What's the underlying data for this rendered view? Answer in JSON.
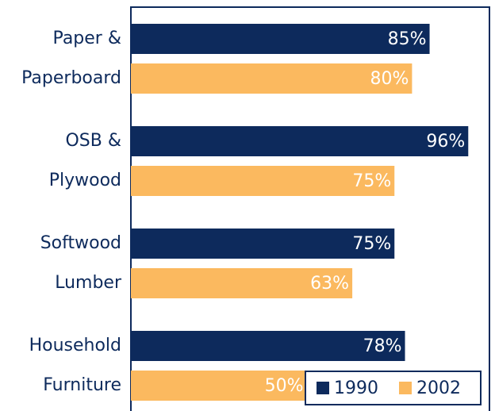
{
  "chart_data": {
    "type": "bar",
    "orientation": "horizontal",
    "categories": [
      "Paper & Paperboard",
      "OSB & Plywood",
      "Softwood Lumber",
      "Household Furniture"
    ],
    "series": [
      {
        "name": "1990",
        "color": "#0d2a5c",
        "values": [
          85,
          96,
          75,
          78
        ],
        "value_labels": [
          "85%",
          "96%",
          "75%",
          "78%"
        ]
      },
      {
        "name": "2002",
        "color": "#fbb95f",
        "values": [
          80,
          75,
          63,
          50
        ],
        "value_labels": [
          "80%",
          "75%",
          "63%",
          "50%"
        ]
      }
    ],
    "xlim": [
      0,
      100
    ],
    "legend": "lower right"
  }
}
